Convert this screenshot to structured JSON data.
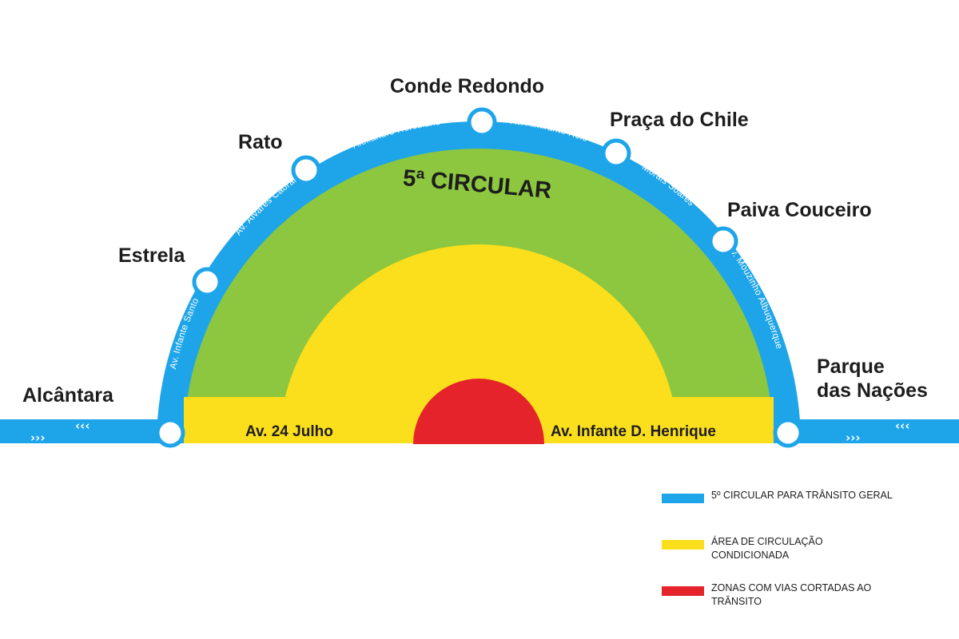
{
  "title": "5ª CIRCULAR",
  "colors": {
    "circular": "#1ea5e9",
    "general_area": "#8dc63f",
    "conditioned_area": "#fcdf1c",
    "cut_zone": "#e4232a"
  },
  "stations": {
    "alcantara": "Alcântara",
    "estrela": "Estrela",
    "rato": "Rato",
    "conde_redondo": "Conde Redondo",
    "praca_chile": "Praça do Chile",
    "paiva_couceiro": "Paiva Couceiro",
    "parque_line1": "Parque",
    "parque_line2": "das Nações"
  },
  "roads": {
    "infante_santo": "Av. Infante Santo",
    "alvares_cabral": "Av. Álvares Cabral",
    "alexandre_herculano": "Alexandre Herculano",
    "almirante_reis": "Av. Almirante Reis",
    "morais_soares": "Morais Soares",
    "mouzinho": "Av. Mouzinho Albuquerque"
  },
  "avenues": {
    "left": "Av. 24 Julho",
    "right": "Av. Infante D. Henrique"
  },
  "arrows": {
    "out": "›››",
    "in": "‹‹‹"
  },
  "legend": [
    {
      "label": "5º circular para trânsito geral",
      "color": "#1ea5e9",
      "name": "legend-circular"
    },
    {
      "label": "Área de circulação condicionada",
      "color": "#fcdf1c",
      "name": "legend-conditioned"
    },
    {
      "label": "Zonas com vias cortadas ao trânsito",
      "color": "#e4232a",
      "name": "legend-cut-zone"
    }
  ]
}
